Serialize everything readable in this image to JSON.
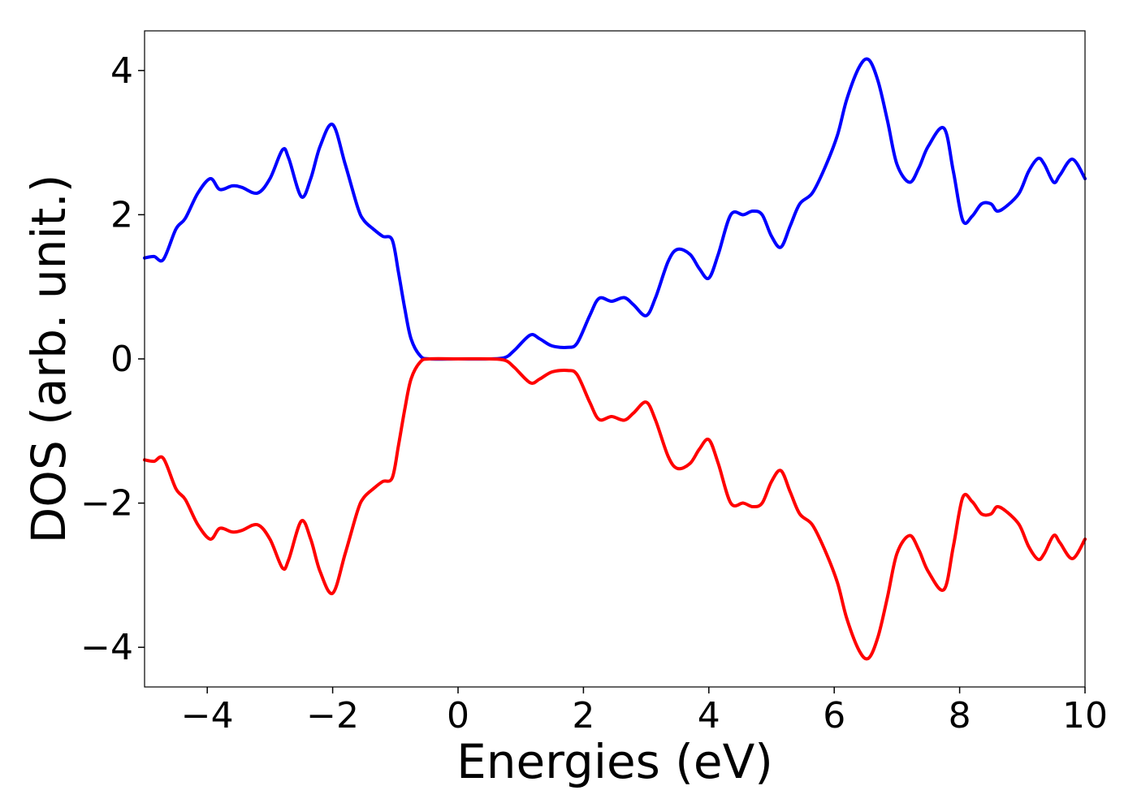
{
  "chart_data": {
    "type": "line",
    "title": "",
    "xlabel": "Energies (eV)",
    "ylabel": "DOS (arb. unit.)",
    "xlim": [
      -5,
      10
    ],
    "ylim": [
      -4.55,
      4.55
    ],
    "xticks": [
      -4,
      -2,
      0,
      2,
      4,
      6,
      8,
      10
    ],
    "xtick_labels": [
      "−4",
      "−2",
      "0",
      "2",
      "4",
      "6",
      "8",
      "10"
    ],
    "yticks": [
      -4,
      -2,
      0,
      2,
      4
    ],
    "ytick_labels": [
      "−4",
      "−2",
      "0",
      "2",
      "4"
    ],
    "grid": false,
    "legend": "none",
    "series": [
      {
        "color": "#0000ff",
        "x": [
          -5.0,
          -4.85,
          -4.7,
          -4.5,
          -4.35,
          -4.15,
          -3.95,
          -3.8,
          -3.6,
          -3.45,
          -3.2,
          -3.0,
          -2.8,
          -2.7,
          -2.5,
          -2.35,
          -2.2,
          -2.0,
          -1.8,
          -1.6,
          -1.5,
          -1.35,
          -1.2,
          -1.05,
          -0.95,
          -0.85,
          -0.75,
          -0.6,
          -0.45,
          0.0,
          0.5,
          0.75,
          0.9,
          1.15,
          1.3,
          1.5,
          1.75,
          1.9,
          2.1,
          2.25,
          2.45,
          2.65,
          2.8,
          3.0,
          3.15,
          3.35,
          3.5,
          3.7,
          3.85,
          4.0,
          4.15,
          4.35,
          4.55,
          4.7,
          4.85,
          5.0,
          5.15,
          5.3,
          5.45,
          5.65,
          5.85,
          6.05,
          6.2,
          6.4,
          6.55,
          6.7,
          6.85,
          7.0,
          7.2,
          7.35,
          7.5,
          7.75,
          7.9,
          8.05,
          8.2,
          8.35,
          8.5,
          8.6,
          8.75,
          8.95,
          9.1,
          9.25,
          9.35,
          9.5,
          9.6,
          9.8,
          10.0
        ],
        "y": [
          1.4,
          1.42,
          1.38,
          1.8,
          1.95,
          2.3,
          2.5,
          2.35,
          2.4,
          2.38,
          2.3,
          2.5,
          2.9,
          2.78,
          2.25,
          2.5,
          2.95,
          3.25,
          2.7,
          2.1,
          1.92,
          1.8,
          1.7,
          1.65,
          1.2,
          0.7,
          0.28,
          0.04,
          0.0,
          0.0,
          0.0,
          0.02,
          0.12,
          0.33,
          0.28,
          0.18,
          0.16,
          0.22,
          0.6,
          0.84,
          0.8,
          0.85,
          0.75,
          0.6,
          0.85,
          1.35,
          1.52,
          1.45,
          1.25,
          1.12,
          1.45,
          2.0,
          2.0,
          2.05,
          2.0,
          1.7,
          1.55,
          1.85,
          2.15,
          2.3,
          2.65,
          3.1,
          3.6,
          4.05,
          4.15,
          3.85,
          3.3,
          2.7,
          2.45,
          2.65,
          2.95,
          3.2,
          2.6,
          1.92,
          1.98,
          2.15,
          2.15,
          2.05,
          2.12,
          2.3,
          2.6,
          2.78,
          2.7,
          2.45,
          2.55,
          2.77,
          2.5
        ]
      },
      {
        "color": "#ff0000",
        "x": [
          -5.0,
          -4.85,
          -4.7,
          -4.5,
          -4.35,
          -4.15,
          -3.95,
          -3.8,
          -3.6,
          -3.45,
          -3.2,
          -3.0,
          -2.8,
          -2.7,
          -2.5,
          -2.35,
          -2.2,
          -2.0,
          -1.8,
          -1.6,
          -1.5,
          -1.35,
          -1.2,
          -1.05,
          -0.95,
          -0.85,
          -0.75,
          -0.6,
          -0.45,
          0.0,
          0.5,
          0.75,
          0.9,
          1.15,
          1.3,
          1.5,
          1.75,
          1.9,
          2.1,
          2.25,
          2.45,
          2.65,
          2.8,
          3.0,
          3.15,
          3.35,
          3.5,
          3.7,
          3.85,
          4.0,
          4.15,
          4.35,
          4.55,
          4.7,
          4.85,
          5.0,
          5.15,
          5.3,
          5.45,
          5.65,
          5.85,
          6.05,
          6.2,
          6.4,
          6.55,
          6.7,
          6.85,
          7.0,
          7.2,
          7.35,
          7.5,
          7.75,
          7.9,
          8.05,
          8.2,
          8.35,
          8.5,
          8.6,
          8.75,
          8.95,
          9.1,
          9.25,
          9.35,
          9.5,
          9.6,
          9.8,
          10.0
        ],
        "y": [
          -1.4,
          -1.42,
          -1.38,
          -1.8,
          -1.95,
          -2.3,
          -2.5,
          -2.35,
          -2.4,
          -2.38,
          -2.3,
          -2.5,
          -2.9,
          -2.78,
          -2.25,
          -2.5,
          -2.95,
          -3.25,
          -2.7,
          -2.1,
          -1.92,
          -1.8,
          -1.7,
          -1.65,
          -1.2,
          -0.7,
          -0.28,
          -0.04,
          0.0,
          0.0,
          0.0,
          -0.02,
          -0.12,
          -0.33,
          -0.28,
          -0.18,
          -0.16,
          -0.22,
          -0.6,
          -0.84,
          -0.8,
          -0.85,
          -0.75,
          -0.6,
          -0.85,
          -1.35,
          -1.52,
          -1.45,
          -1.25,
          -1.12,
          -1.45,
          -2.0,
          -2.0,
          -2.05,
          -2.0,
          -1.7,
          -1.55,
          -1.85,
          -2.15,
          -2.3,
          -2.65,
          -3.1,
          -3.6,
          -4.05,
          -4.15,
          -3.85,
          -3.3,
          -2.7,
          -2.45,
          -2.65,
          -2.95,
          -3.2,
          -2.6,
          -1.92,
          -1.98,
          -2.15,
          -2.15,
          -2.05,
          -2.12,
          -2.3,
          -2.6,
          -2.78,
          -2.7,
          -2.45,
          -2.55,
          -2.77,
          -2.5
        ]
      }
    ]
  }
}
